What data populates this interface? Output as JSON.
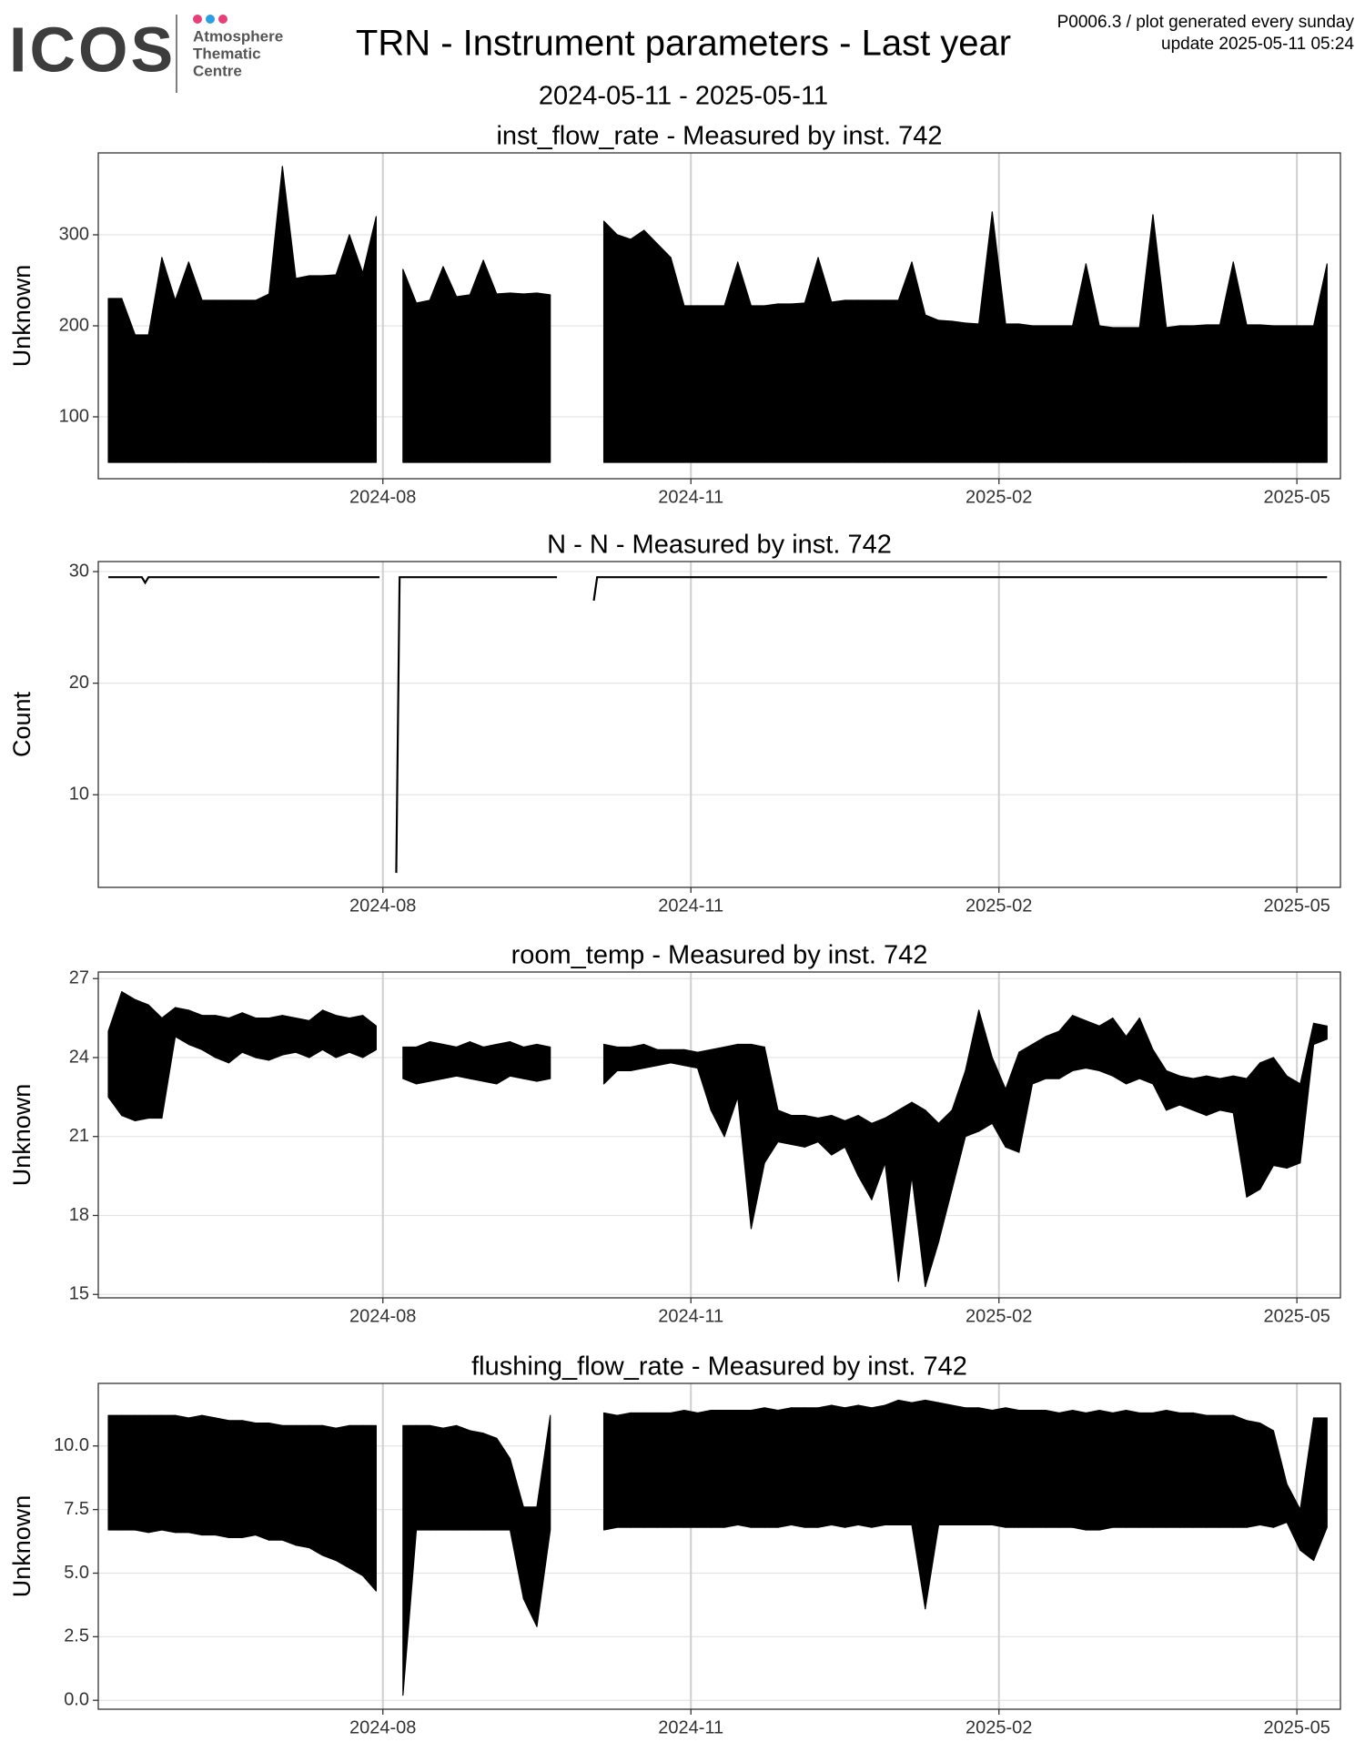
{
  "header": {
    "logo": "ICOS",
    "logo_lines": [
      "Atmosphere",
      "Thematic",
      "Centre"
    ],
    "title": "TRN - Instrument parameters - Last year",
    "subtitle": "2024-05-11 - 2025-05-11",
    "note": "P0006.3 / plot generated every sunday",
    "update": "update  2025-05-11 05:24"
  },
  "chart_data": [
    {
      "type": "band",
      "title": "inst_flow_rate - Measured by inst. 742",
      "y_label": "Unknown",
      "color": "#000000",
      "grid": true,
      "x": [
        "2024-05-11",
        "2024-05-15",
        "2024-05-19",
        "2024-05-23",
        "2024-05-27",
        "2024-05-31",
        "2024-06-04",
        "2024-06-08",
        "2024-06-12",
        "2024-06-16",
        "2024-06-20",
        "2024-06-24",
        "2024-06-28",
        "2024-07-02",
        "2024-07-06",
        "2024-07-10",
        "2024-07-14",
        "2024-07-18",
        "2024-07-22",
        "2024-07-26",
        "2024-07-30",
        "2024-08-03",
        "2024-08-07",
        "2024-08-11",
        "2024-08-15",
        "2024-08-19",
        "2024-08-23",
        "2024-08-27",
        "2024-08-31",
        "2024-09-04",
        "2024-09-08",
        "2024-09-12",
        "2024-09-16",
        "2024-09-20",
        "2024-09-24",
        "2024-09-28",
        "2024-10-02",
        "2024-10-06",
        "2024-10-10",
        "2024-10-14",
        "2024-10-18",
        "2024-10-22",
        "2024-10-26",
        "2024-10-30",
        "2024-11-03",
        "2024-11-07",
        "2024-11-11",
        "2024-11-15",
        "2024-11-19",
        "2024-11-23",
        "2024-11-27",
        "2024-12-01",
        "2024-12-05",
        "2024-12-09",
        "2024-12-13",
        "2024-12-17",
        "2024-12-21",
        "2024-12-25",
        "2024-12-29",
        "2025-01-02",
        "2025-01-06",
        "2025-01-10",
        "2025-01-14",
        "2025-01-18",
        "2025-01-22",
        "2025-01-26",
        "2025-01-30",
        "2025-02-03",
        "2025-02-07",
        "2025-02-11",
        "2025-02-15",
        "2025-02-19",
        "2025-02-23",
        "2025-02-27",
        "2025-03-03",
        "2025-03-07",
        "2025-03-11",
        "2025-03-15",
        "2025-03-19",
        "2025-03-23",
        "2025-03-27",
        "2025-03-31",
        "2025-04-04",
        "2025-04-08",
        "2025-04-12",
        "2025-04-16",
        "2025-04-20",
        "2025-04-24",
        "2025-04-28",
        "2025-05-02",
        "2025-05-06",
        "2025-05-10"
      ],
      "low": [
        50,
        50,
        50,
        50,
        50,
        50,
        50,
        50,
        50,
        50,
        50,
        50,
        50,
        50,
        50,
        50,
        50,
        50,
        50,
        50,
        50,
        null,
        50,
        50,
        50,
        50,
        50,
        50,
        50,
        50,
        50,
        50,
        50,
        50,
        null,
        null,
        null,
        50,
        50,
        50,
        50,
        50,
        50,
        50,
        50,
        50,
        50,
        50,
        50,
        50,
        50,
        50,
        50,
        50,
        50,
        50,
        50,
        50,
        50,
        50,
        50,
        50,
        50,
        50,
        50,
        50,
        50,
        50,
        50,
        50,
        50,
        50,
        50,
        50,
        50,
        50,
        50,
        50,
        50,
        50,
        50,
        50,
        50,
        50,
        50,
        50,
        50,
        50,
        50,
        50,
        50,
        50
      ],
      "high": [
        230,
        230,
        190,
        190,
        275,
        228,
        270,
        228,
        228,
        228,
        228,
        228,
        235,
        375,
        252,
        255,
        255,
        256,
        300,
        258,
        320,
        null,
        262,
        225,
        228,
        265,
        232,
        234,
        272,
        235,
        236,
        235,
        236,
        234,
        null,
        null,
        null,
        315,
        300,
        295,
        305,
        290,
        275,
        222,
        222,
        222,
        222,
        270,
        222,
        222,
        224,
        224,
        225,
        275,
        226,
        228,
        228,
        228,
        228,
        228,
        270,
        212,
        206,
        205,
        203,
        202,
        325,
        202,
        202,
        200,
        200,
        200,
        200,
        268,
        200,
        198,
        198,
        198,
        322,
        198,
        200,
        200,
        201,
        201,
        270,
        201,
        201,
        200,
        200,
        200,
        200,
        268
      ],
      "xlim": [
        "2024-05-08",
        "2025-05-14"
      ],
      "xticks": [
        {
          "value": "2024-08-01",
          "label": "2024-08"
        },
        {
          "value": "2024-11-01",
          "label": "2024-11"
        },
        {
          "value": "2025-02-01",
          "label": "2025-02"
        },
        {
          "value": "2025-05-01",
          "label": "2025-05"
        }
      ],
      "ylim": [
        32,
        390
      ],
      "yticks": [
        100,
        200,
        300
      ]
    },
    {
      "type": "line",
      "title": "N - N - Measured by inst. 742",
      "y_label": "Count",
      "color": "#000000",
      "grid": true,
      "x": [
        "2024-05-11",
        "2024-05-21",
        "2024-05-22",
        "2024-05-23",
        "2024-07-31",
        "2024-08-02",
        "2024-08-05",
        "2024-08-06",
        "2024-09-22",
        "2024-09-27",
        "2024-10-03",
        "2024-10-04",
        "2025-05-10"
      ],
      "values": [
        29.5,
        29.5,
        29.0,
        29.5,
        29.5,
        null,
        3,
        29.5,
        29.5,
        null,
        27.4,
        29.5,
        29.5
      ],
      "xlim": [
        "2024-05-08",
        "2025-05-14"
      ],
      "xticks": [
        {
          "value": "2024-08-01",
          "label": "2024-08"
        },
        {
          "value": "2024-11-01",
          "label": "2024-11"
        },
        {
          "value": "2025-02-01",
          "label": "2025-02"
        },
        {
          "value": "2025-05-01",
          "label": "2025-05"
        }
      ],
      "ylim": [
        1.7,
        30.9
      ],
      "yticks": [
        10,
        20,
        30
      ]
    },
    {
      "type": "band",
      "title": "room_temp - Measured by inst. 742",
      "y_label": "Unknown",
      "color": "#000000",
      "grid": true,
      "x": [
        "2024-05-11",
        "2024-05-15",
        "2024-05-19",
        "2024-05-23",
        "2024-05-27",
        "2024-05-31",
        "2024-06-04",
        "2024-06-08",
        "2024-06-12",
        "2024-06-16",
        "2024-06-20",
        "2024-06-24",
        "2024-06-28",
        "2024-07-02",
        "2024-07-06",
        "2024-07-10",
        "2024-07-14",
        "2024-07-18",
        "2024-07-22",
        "2024-07-26",
        "2024-07-30",
        "2024-08-03",
        "2024-08-07",
        "2024-08-11",
        "2024-08-15",
        "2024-08-19",
        "2024-08-23",
        "2024-08-27",
        "2024-08-31",
        "2024-09-04",
        "2024-09-08",
        "2024-09-12",
        "2024-09-16",
        "2024-09-20",
        "2024-09-24",
        "2024-09-28",
        "2024-10-02",
        "2024-10-06",
        "2024-10-10",
        "2024-10-14",
        "2024-10-18",
        "2024-10-22",
        "2024-10-26",
        "2024-10-30",
        "2024-11-03",
        "2024-11-07",
        "2024-11-11",
        "2024-11-15",
        "2024-11-19",
        "2024-11-23",
        "2024-11-27",
        "2024-12-01",
        "2024-12-05",
        "2024-12-09",
        "2024-12-13",
        "2024-12-17",
        "2024-12-21",
        "2024-12-25",
        "2024-12-29",
        "2025-01-02",
        "2025-01-06",
        "2025-01-10",
        "2025-01-14",
        "2025-01-18",
        "2025-01-22",
        "2025-01-26",
        "2025-01-30",
        "2025-02-03",
        "2025-02-07",
        "2025-02-11",
        "2025-02-15",
        "2025-02-19",
        "2025-02-23",
        "2025-02-27",
        "2025-03-03",
        "2025-03-07",
        "2025-03-11",
        "2025-03-15",
        "2025-03-19",
        "2025-03-23",
        "2025-03-27",
        "2025-03-31",
        "2025-04-04",
        "2025-04-08",
        "2025-04-12",
        "2025-04-16",
        "2025-04-20",
        "2025-04-24",
        "2025-04-28",
        "2025-05-02",
        "2025-05-06",
        "2025-05-10"
      ],
      "low": [
        22.5,
        21.8,
        21.6,
        21.7,
        21.7,
        24.8,
        24.5,
        24.3,
        24.0,
        23.8,
        24.2,
        24.0,
        23.9,
        24.1,
        24.2,
        24.0,
        24.3,
        24.0,
        24.2,
        24.0,
        24.3,
        null,
        23.2,
        23.0,
        23.1,
        23.2,
        23.3,
        23.2,
        23.1,
        23.0,
        23.3,
        23.2,
        23.1,
        23.2,
        null,
        null,
        null,
        23.0,
        23.5,
        23.5,
        23.6,
        23.7,
        23.8,
        23.7,
        23.6,
        22.0,
        21.0,
        22.5,
        17.5,
        20.0,
        20.8,
        20.7,
        20.6,
        20.8,
        20.3,
        20.6,
        19.5,
        18.6,
        20.0,
        15.5,
        19.5,
        15.3,
        17.0,
        19.0,
        21.0,
        21.2,
        21.5,
        20.6,
        20.4,
        23.0,
        23.2,
        23.2,
        23.5,
        23.6,
        23.5,
        23.3,
        23.0,
        23.2,
        23.0,
        22.0,
        22.2,
        22.0,
        21.8,
        22.0,
        21.9,
        18.7,
        19.0,
        19.9,
        19.8,
        20.0,
        24.5,
        24.7
      ],
      "high": [
        25.0,
        26.5,
        26.2,
        26.0,
        25.5,
        25.9,
        25.8,
        25.6,
        25.6,
        25.5,
        25.7,
        25.5,
        25.5,
        25.6,
        25.5,
        25.4,
        25.8,
        25.6,
        25.5,
        25.6,
        25.2,
        null,
        24.4,
        24.4,
        24.6,
        24.5,
        24.4,
        24.6,
        24.4,
        24.5,
        24.6,
        24.4,
        24.5,
        24.4,
        null,
        null,
        null,
        24.5,
        24.4,
        24.4,
        24.5,
        24.3,
        24.3,
        24.3,
        24.2,
        24.3,
        24.4,
        24.5,
        24.5,
        24.4,
        22.0,
        21.8,
        21.8,
        21.7,
        21.8,
        21.6,
        21.8,
        21.5,
        21.7,
        22.0,
        22.3,
        22.0,
        21.5,
        22.0,
        23.5,
        25.8,
        24.0,
        22.8,
        24.2,
        24.5,
        24.8,
        25.0,
        25.6,
        25.4,
        25.2,
        25.5,
        24.8,
        25.5,
        24.3,
        23.5,
        23.3,
        23.2,
        23.3,
        23.2,
        23.3,
        23.2,
        23.8,
        24.0,
        23.3,
        23.0,
        25.3,
        25.2
      ],
      "xlim": [
        "2024-05-08",
        "2025-05-14"
      ],
      "xticks": [
        {
          "value": "2024-08-01",
          "label": "2024-08"
        },
        {
          "value": "2024-11-01",
          "label": "2024-11"
        },
        {
          "value": "2025-02-01",
          "label": "2025-02"
        },
        {
          "value": "2025-05-01",
          "label": "2025-05"
        }
      ],
      "ylim": [
        14.87,
        27.25
      ],
      "yticks": [
        15,
        18,
        21,
        24,
        27
      ]
    },
    {
      "type": "band",
      "title": "flushing_flow_rate - Measured by inst. 742",
      "y_label": "Unknown",
      "color": "#000000",
      "grid": true,
      "x": [
        "2024-05-11",
        "2024-05-15",
        "2024-05-19",
        "2024-05-23",
        "2024-05-27",
        "2024-05-31",
        "2024-06-04",
        "2024-06-08",
        "2024-06-12",
        "2024-06-16",
        "2024-06-20",
        "2024-06-24",
        "2024-06-28",
        "2024-07-02",
        "2024-07-06",
        "2024-07-10",
        "2024-07-14",
        "2024-07-18",
        "2024-07-22",
        "2024-07-26",
        "2024-07-30",
        "2024-08-03",
        "2024-08-07",
        "2024-08-11",
        "2024-08-15",
        "2024-08-19",
        "2024-08-23",
        "2024-08-27",
        "2024-08-31",
        "2024-09-04",
        "2024-09-08",
        "2024-09-12",
        "2024-09-16",
        "2024-09-20",
        "2024-09-24",
        "2024-09-28",
        "2024-10-02",
        "2024-10-06",
        "2024-10-10",
        "2024-10-14",
        "2024-10-18",
        "2024-10-22",
        "2024-10-26",
        "2024-10-30",
        "2024-11-03",
        "2024-11-07",
        "2024-11-11",
        "2024-11-15",
        "2024-11-19",
        "2024-11-23",
        "2024-11-27",
        "2024-12-01",
        "2024-12-05",
        "2024-12-09",
        "2024-12-13",
        "2024-12-17",
        "2024-12-21",
        "2024-12-25",
        "2024-12-29",
        "2025-01-02",
        "2025-01-06",
        "2025-01-10",
        "2025-01-14",
        "2025-01-18",
        "2025-01-22",
        "2025-01-26",
        "2025-01-30",
        "2025-02-03",
        "2025-02-07",
        "2025-02-11",
        "2025-02-15",
        "2025-02-19",
        "2025-02-23",
        "2025-02-27",
        "2025-03-03",
        "2025-03-07",
        "2025-03-11",
        "2025-03-15",
        "2025-03-19",
        "2025-03-23",
        "2025-03-27",
        "2025-03-31",
        "2025-04-04",
        "2025-04-08",
        "2025-04-12",
        "2025-04-16",
        "2025-04-20",
        "2025-04-24",
        "2025-04-28",
        "2025-05-02",
        "2025-05-06",
        "2025-05-10"
      ],
      "low": [
        6.7,
        6.7,
        6.7,
        6.6,
        6.7,
        6.6,
        6.6,
        6.5,
        6.5,
        6.4,
        6.4,
        6.5,
        6.3,
        6.3,
        6.1,
        6.0,
        5.7,
        5.5,
        5.2,
        4.9,
        4.3,
        null,
        0.2,
        6.7,
        6.7,
        6.7,
        6.7,
        6.7,
        6.7,
        6.7,
        6.7,
        4.0,
        2.9,
        6.7,
        null,
        null,
        null,
        6.7,
        6.8,
        6.8,
        6.8,
        6.8,
        6.8,
        6.8,
        6.8,
        6.8,
        6.8,
        6.9,
        6.8,
        6.8,
        6.8,
        6.9,
        6.8,
        6.8,
        6.9,
        6.8,
        6.9,
        6.8,
        6.9,
        6.9,
        6.9,
        3.6,
        6.9,
        6.9,
        6.9,
        6.9,
        6.9,
        6.8,
        6.8,
        6.8,
        6.8,
        6.8,
        6.8,
        6.7,
        6.7,
        6.8,
        6.8,
        6.8,
        6.8,
        6.8,
        6.8,
        6.8,
        6.8,
        6.8,
        6.8,
        6.8,
        6.9,
        6.8,
        7.0,
        5.9,
        5.5,
        6.8
      ],
      "high": [
        11.2,
        11.2,
        11.2,
        11.2,
        11.2,
        11.2,
        11.1,
        11.2,
        11.1,
        11.0,
        11.0,
        10.9,
        10.9,
        10.8,
        10.8,
        10.8,
        10.8,
        10.7,
        10.8,
        10.8,
        10.8,
        null,
        10.8,
        10.8,
        10.8,
        10.7,
        10.8,
        10.6,
        10.5,
        10.3,
        9.5,
        7.6,
        7.6,
        11.2,
        null,
        null,
        null,
        11.3,
        11.2,
        11.3,
        11.3,
        11.3,
        11.3,
        11.4,
        11.3,
        11.4,
        11.4,
        11.4,
        11.4,
        11.5,
        11.4,
        11.5,
        11.5,
        11.5,
        11.6,
        11.5,
        11.6,
        11.5,
        11.6,
        11.8,
        11.7,
        11.8,
        11.7,
        11.6,
        11.5,
        11.5,
        11.4,
        11.5,
        11.4,
        11.4,
        11.4,
        11.3,
        11.4,
        11.3,
        11.4,
        11.3,
        11.4,
        11.3,
        11.3,
        11.4,
        11.3,
        11.3,
        11.2,
        11.2,
        11.2,
        11.0,
        10.9,
        10.6,
        8.5,
        7.5,
        11.1,
        11.1
      ],
      "xlim": [
        "2024-05-08",
        "2025-05-14"
      ],
      "xticks": [
        {
          "value": "2024-08-01",
          "label": "2024-08"
        },
        {
          "value": "2024-11-01",
          "label": "2024-11"
        },
        {
          "value": "2025-02-01",
          "label": "2025-02"
        },
        {
          "value": "2025-05-01",
          "label": "2025-05"
        }
      ],
      "ylim": [
        -0.35,
        12.46
      ],
      "yticks": [
        {
          "value": 0,
          "label": "0.0"
        },
        2.5,
        {
          "value": 5,
          "label": "5.0"
        },
        7.5,
        {
          "value": 10,
          "label": "10.0"
        }
      ]
    }
  ]
}
